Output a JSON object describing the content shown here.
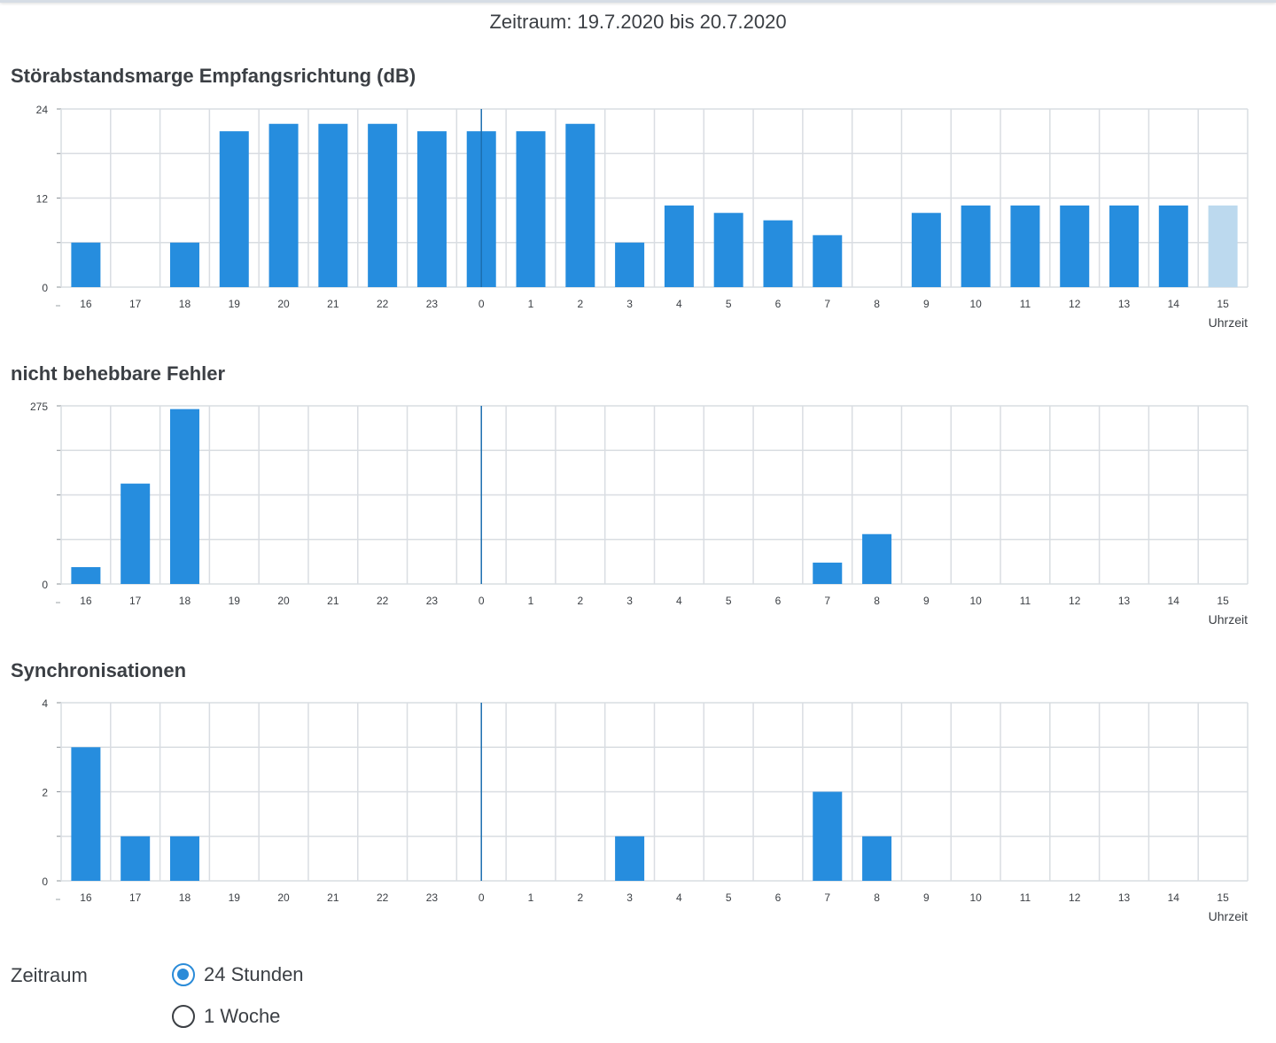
{
  "header": {
    "period_title": "Zeitraum: 19.7.2020 bis 20.7.2020"
  },
  "colors": {
    "bar": "#268dde",
    "bar_current": "#bcd9ee",
    "grid": "#d9dde2",
    "marker": "#1d6fb0",
    "text": "#3b3f44"
  },
  "chart_data": [
    {
      "type": "bar",
      "title": "Störabstandsmarge Empfangsrichtung (dB)",
      "xlabel": "Uhrzeit",
      "ylabel": "",
      "categories": [
        "16",
        "17",
        "18",
        "19",
        "20",
        "21",
        "22",
        "23",
        "0",
        "1",
        "2",
        "3",
        "4",
        "5",
        "6",
        "7",
        "8",
        "9",
        "10",
        "11",
        "12",
        "13",
        "14",
        "15"
      ],
      "values": [
        6,
        null,
        6,
        21,
        22,
        22,
        22,
        21,
        21,
        21,
        22,
        6,
        11,
        10,
        9,
        7,
        null,
        10,
        11,
        11,
        11,
        11,
        11,
        11
      ],
      "current_index": 23,
      "ylim": [
        0,
        24
      ],
      "yticks": [
        0,
        12,
        24
      ],
      "marker_category": "0",
      "grid": true
    },
    {
      "type": "bar",
      "title": "nicht behebbare Fehler",
      "xlabel": "Uhrzeit",
      "ylabel": "",
      "categories": [
        "16",
        "17",
        "18",
        "19",
        "20",
        "21",
        "22",
        "23",
        "0",
        "1",
        "2",
        "3",
        "4",
        "5",
        "6",
        "7",
        "8",
        "9",
        "10",
        "11",
        "12",
        "13",
        "14",
        "15"
      ],
      "values": [
        26,
        155,
        270,
        0,
        0,
        0,
        0,
        0,
        0,
        0,
        0,
        0,
        0,
        0,
        0,
        33,
        77,
        0,
        0,
        0,
        0,
        0,
        0,
        0
      ],
      "current_index": null,
      "ylim": [
        0,
        275
      ],
      "yticks": [
        0,
        275
      ],
      "marker_category": "0",
      "grid": true
    },
    {
      "type": "bar",
      "title": "Synchronisationen",
      "xlabel": "Uhrzeit",
      "ylabel": "",
      "categories": [
        "16",
        "17",
        "18",
        "19",
        "20",
        "21",
        "22",
        "23",
        "0",
        "1",
        "2",
        "3",
        "4",
        "5",
        "6",
        "7",
        "8",
        "9",
        "10",
        "11",
        "12",
        "13",
        "14",
        "15"
      ],
      "values": [
        3,
        1,
        1,
        0,
        0,
        0,
        0,
        0,
        0,
        0,
        0,
        1,
        0,
        0,
        0,
        2,
        1,
        0,
        0,
        0,
        0,
        0,
        0,
        0
      ],
      "current_index": null,
      "ylim": [
        0,
        4
      ],
      "yticks": [
        0,
        2,
        4
      ],
      "marker_category": "0",
      "grid": true
    }
  ],
  "period_selector": {
    "label": "Zeitraum",
    "options": [
      {
        "label": "24 Stunden",
        "checked": true
      },
      {
        "label": "1 Woche",
        "checked": false
      }
    ]
  }
}
